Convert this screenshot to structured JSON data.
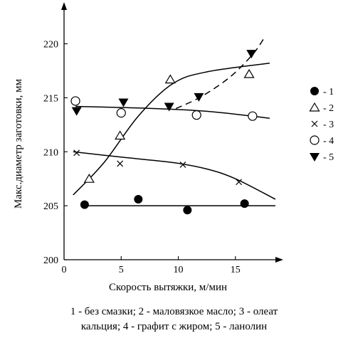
{
  "chart_data": {
    "type": "line",
    "xlabel": "Скорость вытяжки, м/мин",
    "ylabel": "Макс.диаметр заготовки, мм",
    "xlim": [
      0,
      19
    ],
    "ylim": [
      200,
      223
    ],
    "xticks": [
      "0",
      "5",
      "10",
      "15"
    ],
    "yticks": [
      "200",
      "205",
      "210",
      "215",
      "220"
    ],
    "legend_placement": "right",
    "grid": false,
    "series": [
      {
        "name": "1",
        "marker": "filled-circle",
        "points": [
          [
            1.8,
            205.1
          ],
          [
            6.5,
            205.6
          ],
          [
            10.8,
            204.6
          ],
          [
            15.8,
            205.2
          ]
        ],
        "fit": [
          [
            1.5,
            205.0
          ],
          [
            18.5,
            205.0
          ]
        ],
        "dashed": false
      },
      {
        "name": "2",
        "marker": "open-triangle-up",
        "points": [
          [
            2.2,
            207.5
          ],
          [
            4.9,
            211.5
          ],
          [
            9.3,
            216.7
          ],
          [
            16.2,
            217.2
          ]
        ],
        "fit": [
          [
            0.8,
            206.0
          ],
          [
            3.5,
            209.0
          ],
          [
            6.5,
            213.3
          ],
          [
            9.5,
            216.3
          ],
          [
            12.5,
            217.4
          ],
          [
            18.0,
            218.2
          ]
        ],
        "dashed": false
      },
      {
        "name": "3",
        "marker": "x",
        "points": [
          [
            1.1,
            209.9
          ],
          [
            4.9,
            208.9
          ],
          [
            10.4,
            208.8
          ],
          [
            15.3,
            207.2
          ]
        ],
        "fit": [
          [
            0.8,
            210.0
          ],
          [
            5.0,
            209.5
          ],
          [
            9.5,
            209.0
          ],
          [
            12.5,
            208.4
          ],
          [
            15.0,
            207.5
          ],
          [
            18.5,
            205.6
          ]
        ],
        "dashed": false
      },
      {
        "name": "4",
        "marker": "open-circle",
        "points": [
          [
            1.0,
            214.7
          ],
          [
            5.0,
            213.6
          ],
          [
            11.6,
            213.4
          ],
          [
            16.5,
            213.3
          ]
        ],
        "fit": [
          [
            1.0,
            214.2
          ],
          [
            8.0,
            214.0
          ],
          [
            13.0,
            213.7
          ],
          [
            18.0,
            213.1
          ]
        ],
        "dashed": false
      },
      {
        "name": "5",
        "marker": "filled-triangle-down",
        "points": [
          [
            1.1,
            213.8
          ],
          [
            5.2,
            214.6
          ],
          [
            9.2,
            214.2
          ],
          [
            11.8,
            215.1
          ],
          [
            16.4,
            219.1
          ]
        ],
        "fit": [
          [
            9.8,
            214.0
          ],
          [
            12.0,
            215.1
          ],
          [
            14.5,
            216.9
          ],
          [
            16.5,
            219.0
          ],
          [
            17.5,
            220.5
          ]
        ],
        "dashed": true
      }
    ]
  },
  "legend": [
    {
      "label": "- 1",
      "marker": "filled-circle"
    },
    {
      "label": "- 2",
      "marker": "open-triangle-up"
    },
    {
      "label": "- 3",
      "marker": "x"
    },
    {
      "label": "- 4",
      "marker": "open-circle"
    },
    {
      "label": "- 5",
      "marker": "filled-triangle-down"
    }
  ],
  "caption": {
    "line1": "1 - без смазки; 2 - маловязкое масло; 3 - олеат",
    "line2": "кальция; 4 - графит с жиром; 5 - ланолин"
  }
}
